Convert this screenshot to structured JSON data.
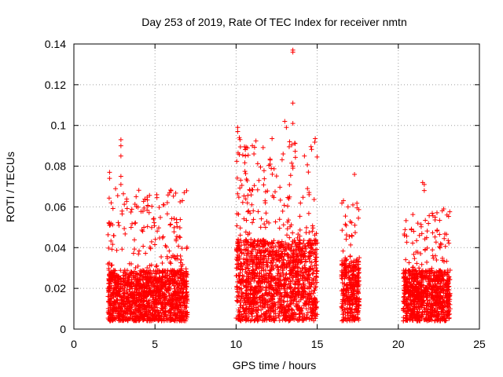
{
  "chart_data": {
    "type": "scatter",
    "title": "Day 253 of 2019, Rate Of TEC Index for receiver nmtn",
    "xlabel": "GPS time / hours",
    "ylabel": "ROTI / TECUs",
    "xlim": [
      0,
      25
    ],
    "ylim": [
      0,
      0.14
    ],
    "x_ticks": [
      "0",
      "5",
      "10",
      "15",
      "20",
      "25"
    ],
    "y_ticks": [
      "0",
      "0.02",
      "0.04",
      "0.06",
      "0.08",
      "0.1",
      "0.12",
      "0.14"
    ],
    "grid": true,
    "marker": "plus",
    "color": "#ff0000",
    "clusters": [
      {
        "name": "2.0-7.0 h",
        "x_range": [
          2.1,
          7.0
        ],
        "base_max": 0.025,
        "spread_max": 0.065
      },
      {
        "name": "10.0-15.0 h",
        "x_range": [
          10.0,
          15.0
        ],
        "base_max": 0.04,
        "spread_max": 0.09
      },
      {
        "name": "16.5-17.6 h",
        "x_range": [
          16.5,
          17.6
        ],
        "base_max": 0.03,
        "spread_max": 0.06
      },
      {
        "name": "20.3-23.2 h",
        "x_range": [
          20.3,
          23.2
        ],
        "base_max": 0.025,
        "spread_max": 0.055
      }
    ],
    "highlights": [
      {
        "x": 2.2,
        "y": 0.077
      },
      {
        "x": 2.2,
        "y": 0.074
      },
      {
        "x": 2.3,
        "y": 0.062
      },
      {
        "x": 2.9,
        "y": 0.093
      },
      {
        "x": 2.9,
        "y": 0.09
      },
      {
        "x": 2.9,
        "y": 0.085
      },
      {
        "x": 2.9,
        "y": 0.075
      },
      {
        "x": 2.9,
        "y": 0.071
      },
      {
        "x": 10.1,
        "y": 0.099
      },
      {
        "x": 10.1,
        "y": 0.097
      },
      {
        "x": 10.2,
        "y": 0.094
      },
      {
        "x": 10.7,
        "y": 0.089
      },
      {
        "x": 11.0,
        "y": 0.09
      },
      {
        "x": 11.1,
        "y": 0.086
      },
      {
        "x": 13.0,
        "y": 0.102
      },
      {
        "x": 13.1,
        "y": 0.099
      },
      {
        "x": 13.3,
        "y": 0.092
      },
      {
        "x": 13.5,
        "y": 0.137
      },
      {
        "x": 13.5,
        "y": 0.136
      },
      {
        "x": 13.5,
        "y": 0.111
      },
      {
        "x": 13.5,
        "y": 0.101
      },
      {
        "x": 13.5,
        "y": 0.08
      },
      {
        "x": 13.5,
        "y": 0.079
      },
      {
        "x": 12.9,
        "y": 0.086
      },
      {
        "x": 12.1,
        "y": 0.083
      },
      {
        "x": 12.1,
        "y": 0.081
      },
      {
        "x": 17.3,
        "y": 0.076
      },
      {
        "x": 17.2,
        "y": 0.061
      },
      {
        "x": 16.9,
        "y": 0.06
      },
      {
        "x": 21.5,
        "y": 0.072
      },
      {
        "x": 21.6,
        "y": 0.071
      },
      {
        "x": 21.6,
        "y": 0.068
      },
      {
        "x": 22.8,
        "y": 0.059
      },
      {
        "x": 23.0,
        "y": 0.056
      },
      {
        "x": 6.8,
        "y": 0.067
      },
      {
        "x": 5.9,
        "y": 0.067
      },
      {
        "x": 14.4,
        "y": 0.069
      },
      {
        "x": 14.5,
        "y": 0.066
      }
    ]
  }
}
